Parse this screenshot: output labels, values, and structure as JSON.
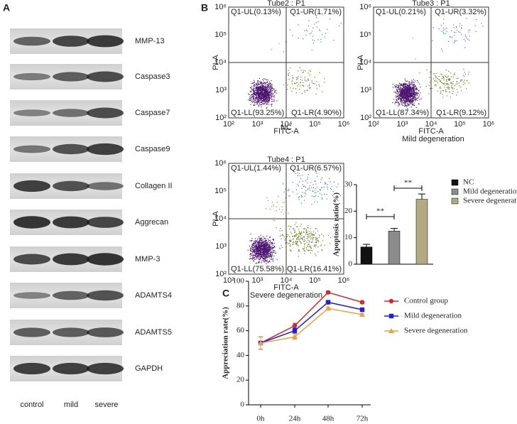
{
  "panel_labels": [
    "A",
    "B",
    "C"
  ],
  "blot": {
    "proteins": [
      "MMP-13",
      "Caspase3",
      "Caspase7",
      "Caspase9",
      "Collagen II",
      "Aggrecan",
      "MMP-3",
      "ADAMTS4",
      "ADAMTS5",
      "GAPDH"
    ],
    "groups": [
      "control",
      "mild",
      "severe"
    ]
  },
  "flow_axes": {
    "x_label": "FITC-A",
    "y_label": "PI-A",
    "ticks": [
      "10²",
      "10³",
      "10⁴",
      "10⁵",
      "10⁶"
    ]
  },
  "flow": [
    {
      "title": "Tube2 : P1",
      "quadrants": [
        "Q1-UL(0.13%)",
        "Q1-UR(1.71%)",
        "Q1-LL(93.25%)",
        "Q1-LR(4.90%)"
      ],
      "caption": "NC"
    },
    {
      "title": "Tube3 : P1",
      "quadrants": [
        "Q1-UL(0.21%)",
        "Q1-UR(3.32%)",
        "Q1-LL(87.34%)",
        "Q1-LR(9.12%)"
      ],
      "caption": "Mild degeneration"
    },
    {
      "title": "Tube4 : P1",
      "quadrants": [
        "Q1-UL(1.44%)",
        "Q1-UR(6.57%)",
        "Q1-LL(75.58%)",
        "Q1-LR(16.41%)"
      ],
      "caption": "Severe degeneration"
    }
  ],
  "chart_data": [
    {
      "type": "bar",
      "y_label": "Apoptosis ratio(%)",
      "categories": [
        "NC",
        "Mild degeneration",
        "Severe degeneration"
      ],
      "values": [
        6.5,
        12.5,
        24.5
      ],
      "errors": [
        1,
        1,
        2
      ],
      "colors": [
        "#111111",
        "#8c8c8c",
        "#b3aa82"
      ],
      "ylim": [
        0,
        30
      ],
      "yticks": [
        0,
        10,
        20,
        30
      ],
      "annotations": [
        "**",
        "**"
      ]
    },
    {
      "type": "line",
      "y_label": "Appreciation rate(%)",
      "categories": [
        "0h",
        "24h",
        "48h",
        "72h"
      ],
      "ylim": [
        0,
        100
      ],
      "yticks": [
        0,
        20,
        40,
        60,
        80,
        100
      ],
      "series": [
        {
          "name": "Control group",
          "color": "#d62728",
          "marker": "circle",
          "values": [
            50,
            64,
            91,
            83
          ],
          "errors": [
            5,
            2,
            1,
            1
          ]
        },
        {
          "name": "Mild degeneration",
          "color": "#1f1fe0",
          "marker": "square",
          "values": [
            50,
            60,
            83,
            77
          ],
          "errors": [
            5,
            2,
            1,
            1
          ]
        },
        {
          "name": "Severe degeneration",
          "color": "#f0a040",
          "marker": "triangle",
          "values": [
            50,
            55,
            78,
            73
          ],
          "errors": [
            5,
            2,
            1,
            1
          ]
        }
      ]
    }
  ]
}
